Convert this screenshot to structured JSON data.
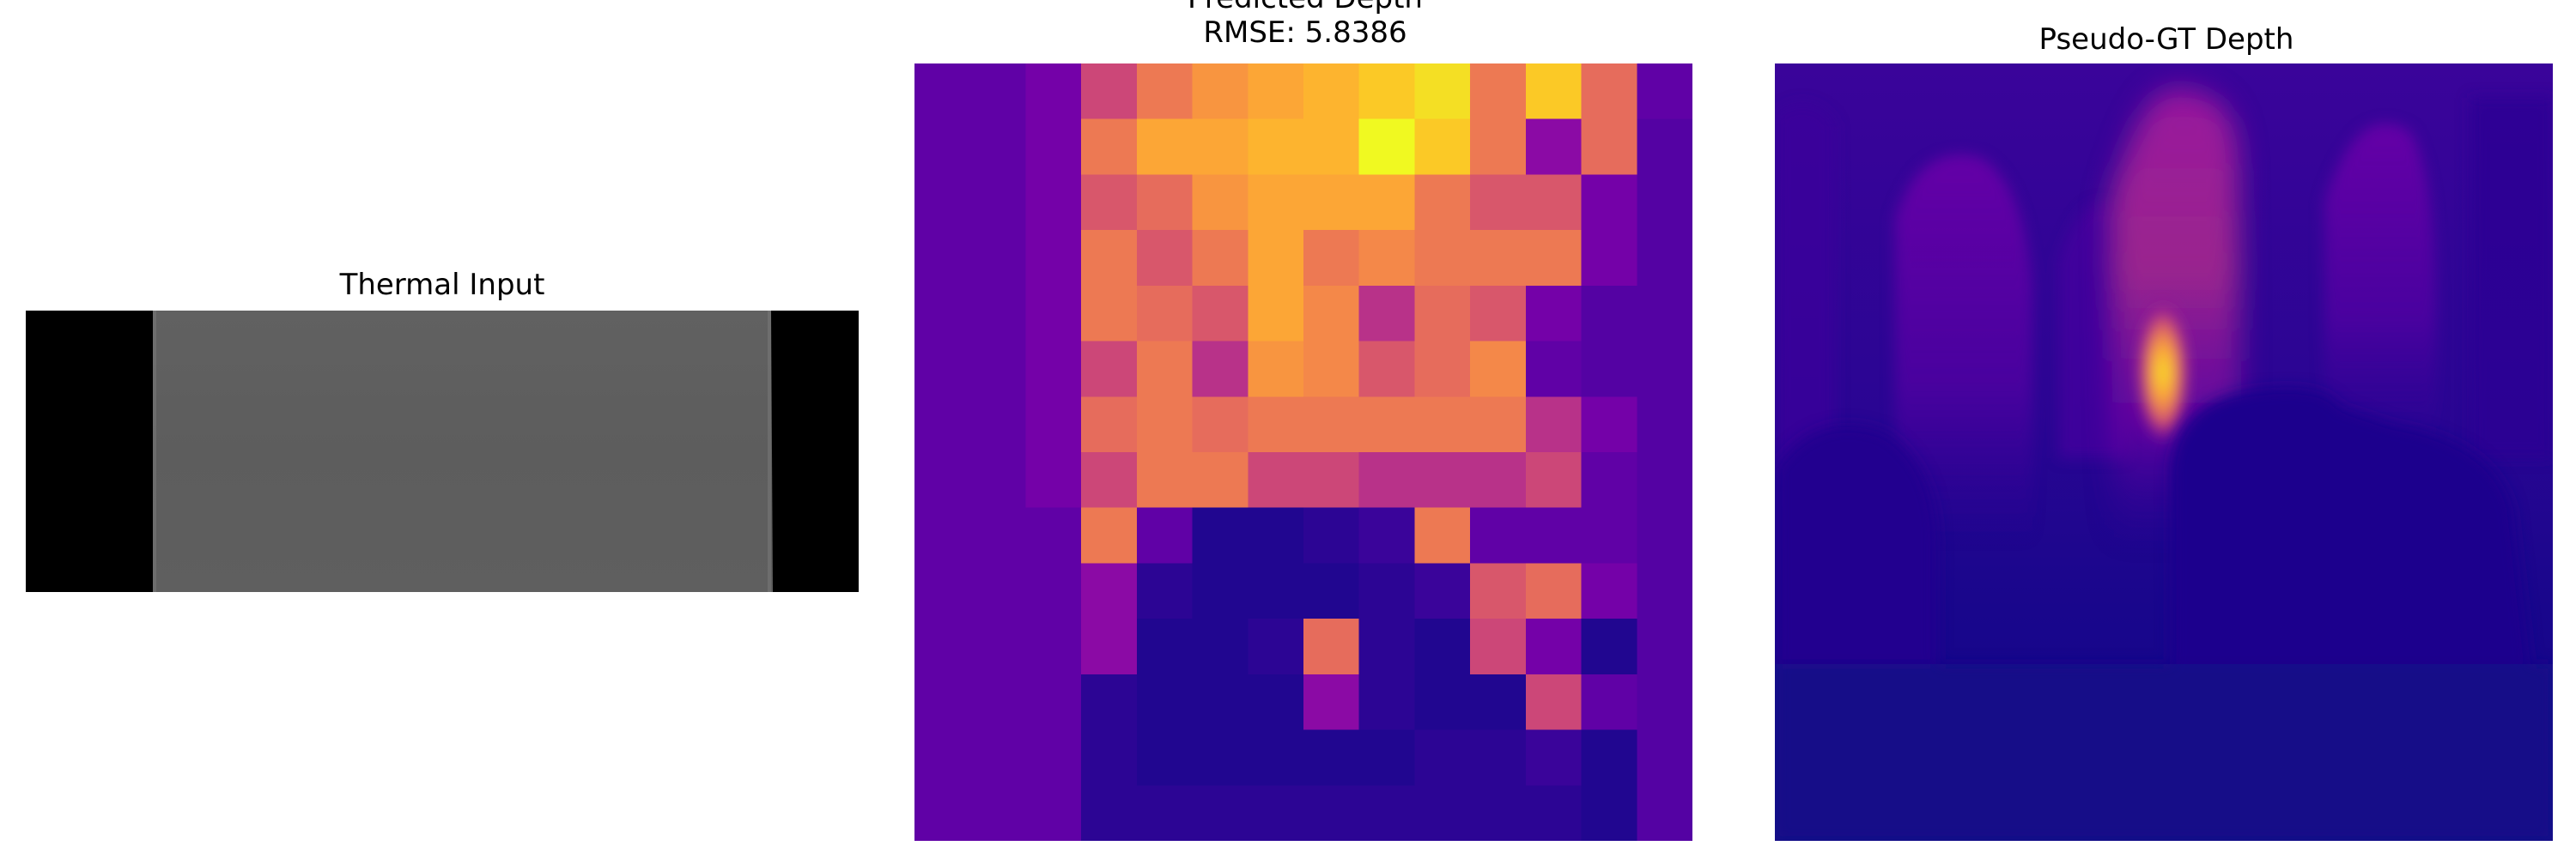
{
  "figure": {
    "panels": [
      {
        "id": "thermal",
        "title": "Thermal Input",
        "colormap": "gray"
      },
      {
        "id": "predicted",
        "title_line1": "Predicted Depth",
        "title_line2": "RMSE: 5.8386",
        "colormap": "plasma"
      },
      {
        "id": "pseudo_gt",
        "title": "Pseudo-GT Depth",
        "colormap": "plasma"
      }
    ]
  },
  "colors": {
    "background": "#ffffff",
    "thermal_border": "#000000",
    "thermal_fill": "#5f5f5f"
  }
}
